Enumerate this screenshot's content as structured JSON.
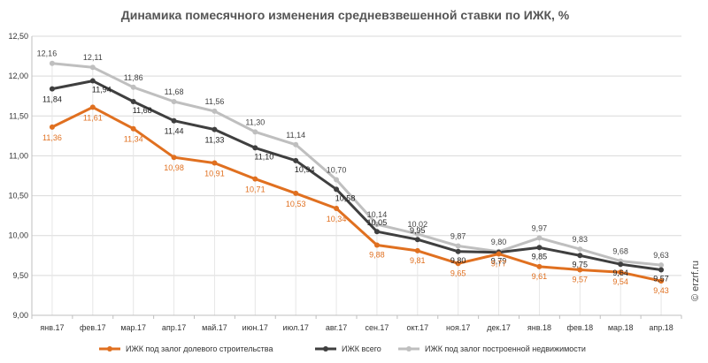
{
  "chart_data": {
    "type": "line",
    "title": "Динамика помесячного изменения средневзвешенной ставки по ИЖК, %",
    "categories": [
      "янв.17",
      "фев.17",
      "мар.17",
      "апр.17",
      "май.17",
      "июн.17",
      "июл.17",
      "авг.17",
      "сен.17",
      "окт.17",
      "ноя.17",
      "дек.17",
      "янв.18",
      "фев.18",
      "мар.18",
      "апр.18"
    ],
    "ylim": [
      9.0,
      12.5
    ],
    "yticks": [
      "9,00",
      "9,50",
      "10,00",
      "10,50",
      "11,00",
      "11,50",
      "12,00",
      "12,50"
    ],
    "ytick_values": [
      9.0,
      9.5,
      10.0,
      10.5,
      11.0,
      11.5,
      12.0,
      12.5
    ],
    "grid": true,
    "legend_position": "bottom",
    "series": [
      {
        "name": "ИЖК под залог долевого строительства",
        "color": "#E07020",
        "values": [
          11.36,
          11.61,
          11.34,
          10.98,
          10.91,
          10.71,
          10.53,
          10.34,
          9.88,
          9.81,
          9.65,
          9.77,
          9.61,
          9.57,
          9.54,
          9.43
        ],
        "labels": [
          "11,36",
          "11,61",
          "11,34",
          "10,98",
          "10,91",
          "10,71",
          "10,53",
          "10,34",
          "9,88",
          "9,81",
          "9,65",
          "9,77",
          "9,61",
          "9,57",
          "9,54",
          "9,43"
        ]
      },
      {
        "name": "ИЖК всего",
        "color": "#3F3F3F",
        "values": [
          11.84,
          11.94,
          11.68,
          11.44,
          11.33,
          11.1,
          10.94,
          10.58,
          10.05,
          9.95,
          9.8,
          9.79,
          9.85,
          9.75,
          9.64,
          9.57
        ],
        "labels": [
          "11,84",
          "11,94",
          "11,68",
          "11,44",
          "11,33",
          "11,10",
          "10,94",
          "10,58",
          "10,05",
          "9,95",
          "9,80",
          "9,79",
          "9,85",
          "9,75",
          "9,64",
          "9,57"
        ]
      },
      {
        "name": "ИЖК под залог построенной недвижимости",
        "color": "#BFBFBF",
        "values": [
          12.16,
          12.11,
          11.86,
          11.68,
          11.56,
          11.3,
          11.14,
          10.7,
          10.14,
          10.02,
          9.87,
          9.8,
          9.97,
          9.83,
          9.68,
          9.63
        ],
        "labels": [
          "12,16",
          "12,11",
          "11,86",
          "11,68",
          "11,56",
          "11,30",
          "11,14",
          "10,70",
          "10,14",
          "10,02",
          "9,87",
          "9,80",
          "9,97",
          "9,83",
          "9,68",
          "9,63"
        ]
      }
    ]
  },
  "watermark": "© erzrf.ru"
}
